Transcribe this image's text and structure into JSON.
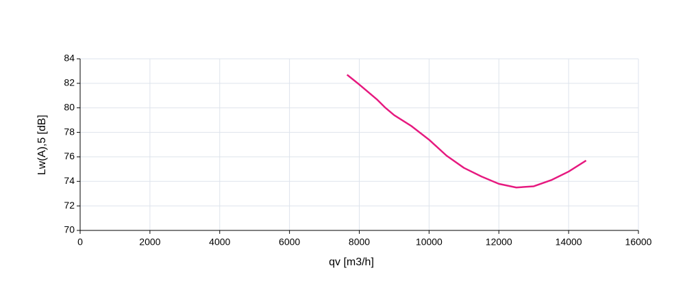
{
  "chart_data": {
    "type": "line",
    "x_label": "qv [m3/h]",
    "y_label": "Lw(A),5 [dB]",
    "x": [
      7650,
      8000,
      8500,
      8750,
      9000,
      9500,
      10000,
      10500,
      11000,
      11500,
      12000,
      12500,
      13000,
      13500,
      14000,
      14500
    ],
    "series": [
      {
        "color": "#e6197f",
        "values": [
          82.7,
          81.9,
          80.7,
          80.0,
          79.4,
          78.5,
          77.4,
          76.1,
          75.1,
          74.4,
          73.8,
          73.5,
          73.6,
          74.1,
          74.8,
          75.7
        ]
      }
    ],
    "xlim": [
      0,
      16000
    ],
    "xticks": [
      0,
      2000,
      4000,
      6000,
      8000,
      10000,
      12000,
      14000,
      16000
    ],
    "ylim": [
      70,
      84
    ],
    "yticks": [
      70,
      72,
      74,
      76,
      78,
      80,
      82,
      84
    ],
    "grid": true
  }
}
